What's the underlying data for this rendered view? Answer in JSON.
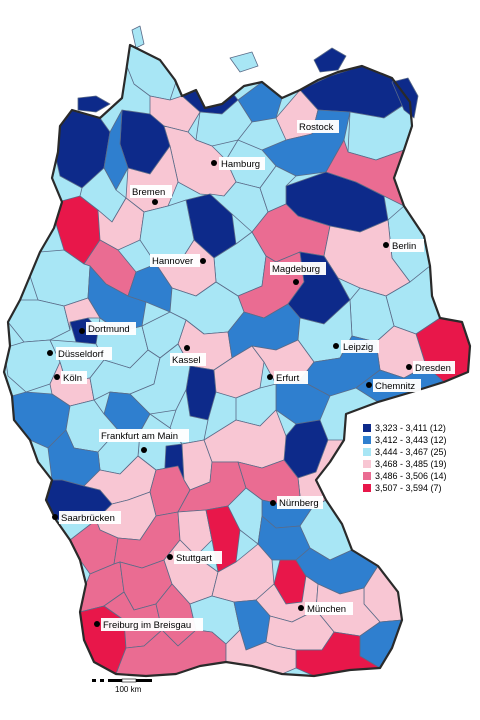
{
  "colors": {
    "c1": "#0d2a8a",
    "c2": "#2f7fcf",
    "c3": "#a8e6f5",
    "c4": "#f8c6d3",
    "c5": "#ea6c92",
    "c6": "#e8174a",
    "border": "#5a6b88",
    "outline": "#2a2a2a"
  },
  "legend": [
    {
      "label": "3,323 - 3,411 (12)",
      "color_key": "c1"
    },
    {
      "label": "3,412 - 3,443 (12)",
      "color_key": "c2"
    },
    {
      "label": "3,444 - 3,467 (25)",
      "color_key": "c3"
    },
    {
      "label": "3,468 - 3,485 (19)",
      "color_key": "c4"
    },
    {
      "label": "3,486 - 3,506 (14)",
      "color_key": "c5"
    },
    {
      "label": "3,507 - 3,594  (7)",
      "color_key": "c6"
    }
  ],
  "cities": [
    {
      "name": "Rostock",
      "dot": false
    },
    {
      "name": "Hamburg",
      "dot": true
    },
    {
      "name": "Bremen",
      "dot": true
    },
    {
      "name": "Berlin",
      "dot": true
    },
    {
      "name": "Hannover",
      "dot": true
    },
    {
      "name": "Magdeburg",
      "dot": true
    },
    {
      "name": "Dortmund",
      "dot": true
    },
    {
      "name": "Düsseldorf",
      "dot": true
    },
    {
      "name": "Kassel",
      "dot": true
    },
    {
      "name": "Leipzig",
      "dot": true
    },
    {
      "name": "Dresden",
      "dot": true
    },
    {
      "name": "Köln",
      "dot": true
    },
    {
      "name": "Erfurt",
      "dot": true
    },
    {
      "name": "Chemnitz",
      "dot": true
    },
    {
      "name": "Frankfurt am Main",
      "dot": true
    },
    {
      "name": "Nürnberg",
      "dot": true
    },
    {
      "name": "Saarbrücken",
      "dot": true
    },
    {
      "name": "Stuttgart",
      "dot": true
    },
    {
      "name": "München",
      "dot": true
    },
    {
      "name": "Freiburg im Breisgau",
      "dot": true
    }
  ],
  "scale": {
    "label": "100 km"
  }
}
